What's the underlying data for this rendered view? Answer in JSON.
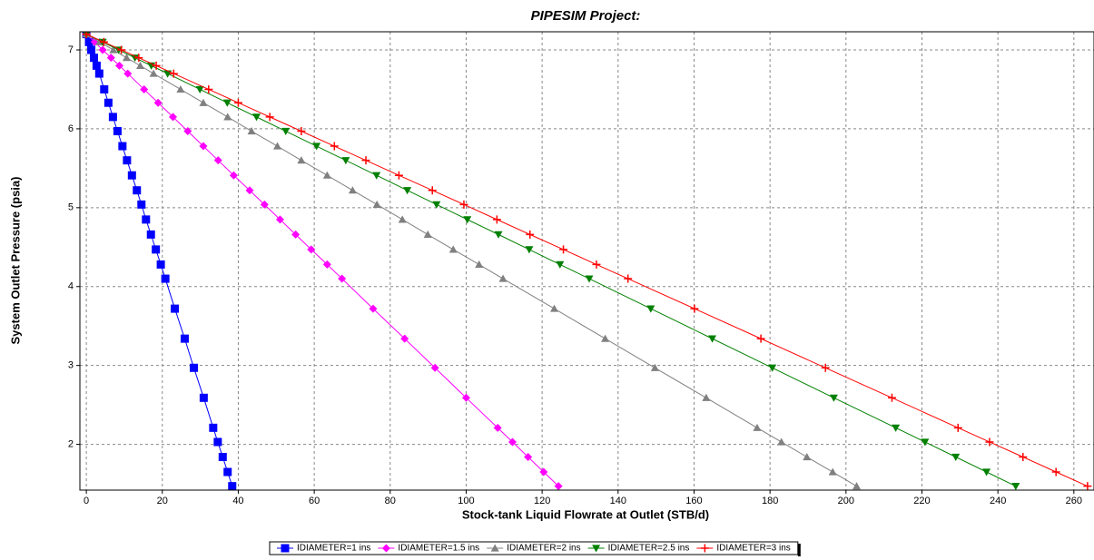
{
  "chart_data": {
    "type": "line",
    "title": "PIPESIM Project:",
    "x_label": "Stock-tank Liquid Flowrate at Outlet (STB/d)",
    "y_label": "System Outlet Pressure (psia)",
    "xlim": [
      -1.7,
      265.3
    ],
    "ylim": [
      1.42,
      7.23
    ],
    "xticks": [
      0,
      20,
      40,
      60,
      80,
      100,
      120,
      140,
      160,
      180,
      200,
      220,
      240,
      260
    ],
    "yticks": [
      2,
      3,
      4,
      5,
      6,
      7
    ],
    "grid": true,
    "series": [
      {
        "name": "IDIAMETER=1 ins",
        "color": "#0000ff",
        "marker": "square",
        "x": [
          0,
          0.7,
          1.3,
          2.0,
          2.7,
          3.4,
          4.7,
          5.8,
          7.0,
          8.2,
          9.5,
          10.7,
          12.0,
          13.3,
          14.5,
          15.7,
          17.0,
          18.3,
          19.6,
          20.8,
          23.3,
          25.9,
          28.3,
          30.9,
          33.4,
          34.6,
          35.9,
          37.2,
          38.4
        ],
        "values": [
          7.2,
          7.1,
          7.0,
          6.9,
          6.8,
          6.7,
          6.5,
          6.33,
          6.15,
          5.97,
          5.78,
          5.6,
          5.41,
          5.22,
          5.04,
          4.85,
          4.66,
          4.47,
          4.28,
          4.1,
          3.72,
          3.34,
          2.97,
          2.59,
          2.21,
          2.03,
          1.84,
          1.65,
          1.47
        ]
      },
      {
        "name": "IDIAMETER=1.5 ins",
        "color": "#ff00ff",
        "marker": "diamond",
        "x": [
          0,
          2.2,
          4.3,
          6.5,
          8.7,
          10.9,
          15.2,
          18.9,
          22.8,
          26.7,
          30.8,
          34.7,
          38.8,
          43.0,
          46.9,
          51.0,
          55.1,
          59.2,
          63.4,
          67.3,
          75.5,
          83.8,
          91.8,
          100.0,
          108.3,
          112.2,
          116.3,
          120.4,
          124.3
        ],
        "values": [
          7.2,
          7.1,
          7.0,
          6.9,
          6.8,
          6.7,
          6.5,
          6.33,
          6.15,
          5.97,
          5.78,
          5.6,
          5.41,
          5.22,
          5.04,
          4.85,
          4.66,
          4.47,
          4.28,
          4.1,
          3.72,
          3.34,
          2.97,
          2.59,
          2.21,
          2.03,
          1.84,
          1.65,
          1.47
        ]
      },
      {
        "name": "IDIAMETER=2 ins",
        "color": "#808080",
        "marker": "triangle-up",
        "x": [
          0,
          3.5,
          7.1,
          10.6,
          14.2,
          17.7,
          24.8,
          30.8,
          37.2,
          43.5,
          50.3,
          56.6,
          63.4,
          70.1,
          76.5,
          83.2,
          89.9,
          96.6,
          103.4,
          109.7,
          123.2,
          136.6,
          149.7,
          163.2,
          176.6,
          183.0,
          189.7,
          196.5,
          202.8
        ],
        "values": [
          7.2,
          7.1,
          7.0,
          6.9,
          6.8,
          6.7,
          6.5,
          6.33,
          6.15,
          5.97,
          5.78,
          5.6,
          5.41,
          5.22,
          5.04,
          4.85,
          4.66,
          4.47,
          4.28,
          4.1,
          3.72,
          3.34,
          2.97,
          2.59,
          2.21,
          2.03,
          1.84,
          1.65,
          1.47
        ]
      },
      {
        "name": "IDIAMETER=2.5 ins",
        "color": "#008000",
        "marker": "triangle-down",
        "x": [
          0,
          4.3,
          8.5,
          12.8,
          17.1,
          21.4,
          29.9,
          37.1,
          44.8,
          52.5,
          60.6,
          68.3,
          76.4,
          84.5,
          92.2,
          100.3,
          108.5,
          116.6,
          124.7,
          132.4,
          148.6,
          164.8,
          180.6,
          196.8,
          213.1,
          220.8,
          228.9,
          237.0,
          244.7
        ],
        "values": [
          7.2,
          7.1,
          7.0,
          6.9,
          6.8,
          6.7,
          6.5,
          6.33,
          6.15,
          5.97,
          5.78,
          5.6,
          5.41,
          5.22,
          5.04,
          4.85,
          4.66,
          4.47,
          4.28,
          4.1,
          3.72,
          3.34,
          2.97,
          2.59,
          2.21,
          2.03,
          1.84,
          1.65,
          1.47
        ]
      },
      {
        "name": "IDIAMETER=3 ins",
        "color": "#ff0000",
        "marker": "plus",
        "x": [
          0,
          4.6,
          9.2,
          13.8,
          18.4,
          23.0,
          32.2,
          40.0,
          48.3,
          56.6,
          65.3,
          73.6,
          82.3,
          91.1,
          99.4,
          108.1,
          116.8,
          125.6,
          134.3,
          142.6,
          160.1,
          177.6,
          194.6,
          212.1,
          229.5,
          237.8,
          246.6,
          255.3,
          263.6
        ],
        "values": [
          7.2,
          7.1,
          7.0,
          6.9,
          6.8,
          6.7,
          6.5,
          6.33,
          6.15,
          5.97,
          5.78,
          5.6,
          5.41,
          5.22,
          5.04,
          4.85,
          4.66,
          4.47,
          4.28,
          4.1,
          3.72,
          3.34,
          2.97,
          2.59,
          2.21,
          2.03,
          1.84,
          1.65,
          1.47
        ]
      }
    ]
  }
}
